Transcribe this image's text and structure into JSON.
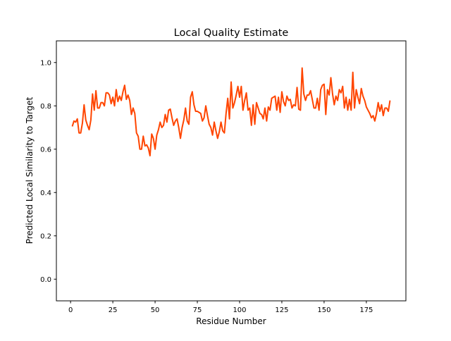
{
  "chart_data": {
    "type": "line",
    "title": "Local Quality Estimate",
    "xlabel": "Residue Number",
    "ylabel": "Predicted Local Similarity to Target",
    "xlim": [
      -8.4,
      198.4
    ],
    "ylim": [
      -0.1,
      1.1
    ],
    "xticks": [
      0,
      25,
      50,
      75,
      100,
      125,
      150,
      175
    ],
    "xtick_labels": [
      "0",
      "25",
      "50",
      "75",
      "100",
      "125",
      "150",
      "175"
    ],
    "yticks": [
      0.0,
      0.2,
      0.4,
      0.6,
      0.8,
      1.0
    ],
    "ytick_labels": [
      "0.0",
      "0.2",
      "0.4",
      "0.6",
      "0.8",
      "1.0"
    ],
    "grid": false,
    "color": "#ff4500",
    "x_start": 1,
    "values": [
      0.705,
      0.73,
      0.725,
      0.74,
      0.675,
      0.675,
      0.72,
      0.805,
      0.735,
      0.71,
      0.69,
      0.735,
      0.855,
      0.78,
      0.87,
      0.79,
      0.79,
      0.815,
      0.815,
      0.8,
      0.86,
      0.86,
      0.85,
      0.81,
      0.84,
      0.8,
      0.875,
      0.82,
      0.845,
      0.825,
      0.865,
      0.895,
      0.83,
      0.85,
      0.825,
      0.76,
      0.79,
      0.765,
      0.675,
      0.66,
      0.6,
      0.6,
      0.66,
      0.615,
      0.62,
      0.605,
      0.57,
      0.67,
      0.65,
      0.6,
      0.665,
      0.69,
      0.725,
      0.7,
      0.71,
      0.76,
      0.725,
      0.78,
      0.785,
      0.745,
      0.71,
      0.73,
      0.74,
      0.7,
      0.65,
      0.7,
      0.735,
      0.79,
      0.73,
      0.715,
      0.84,
      0.865,
      0.805,
      0.775,
      0.775,
      0.77,
      0.765,
      0.73,
      0.745,
      0.8,
      0.755,
      0.715,
      0.7,
      0.665,
      0.725,
      0.685,
      0.65,
      0.68,
      0.725,
      0.685,
      0.675,
      0.765,
      0.835,
      0.74,
      0.91,
      0.79,
      0.815,
      0.85,
      0.89,
      0.84,
      0.89,
      0.78,
      0.825,
      0.86,
      0.78,
      0.79,
      0.71,
      0.805,
      0.715,
      0.815,
      0.79,
      0.765,
      0.76,
      0.74,
      0.79,
      0.73,
      0.795,
      0.78,
      0.835,
      0.84,
      0.845,
      0.78,
      0.84,
      0.77,
      0.865,
      0.82,
      0.8,
      0.845,
      0.825,
      0.83,
      0.79,
      0.805,
      0.8,
      0.885,
      0.785,
      0.78,
      0.975,
      0.855,
      0.825,
      0.85,
      0.85,
      0.87,
      0.83,
      0.79,
      0.79,
      0.835,
      0.78,
      0.875,
      0.895,
      0.9,
      0.76,
      0.875,
      0.85,
      0.93,
      0.855,
      0.805,
      0.845,
      0.825,
      0.875,
      0.86,
      0.89,
      0.79,
      0.84,
      0.78,
      0.83,
      0.78,
      0.955,
      0.79,
      0.875,
      0.84,
      0.81,
      0.88,
      0.845,
      0.825,
      0.795,
      0.78,
      0.765,
      0.745,
      0.755,
      0.73,
      0.765,
      0.815,
      0.775,
      0.805,
      0.755,
      0.79,
      0.79,
      0.775,
      0.825
    ]
  }
}
